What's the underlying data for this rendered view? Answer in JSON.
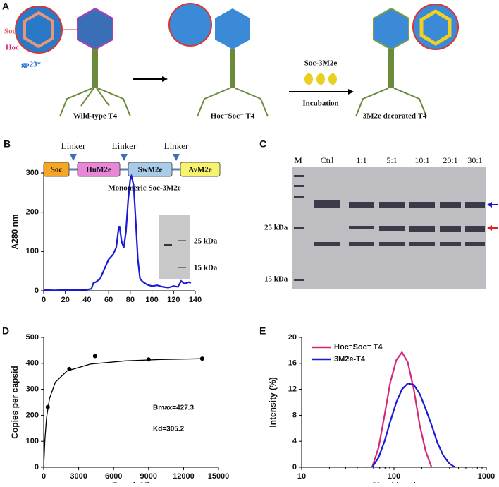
{
  "panel_labels": [
    "A",
    "B",
    "C",
    "D",
    "E"
  ],
  "panel_a": {
    "soc": "Soc",
    "hoc": "Hoc",
    "gp23": "gp23*",
    "wild_type": "Wild-type T4",
    "hoc_soc": "Hoc⁻Soc⁻ T4",
    "reagent": "Soc-3M2e",
    "incubation": "Incubation",
    "decorated": "3M2e decorated T4"
  },
  "panel_b_construct": {
    "linkers": [
      "Linker",
      "Linker",
      "Linker"
    ],
    "domains": [
      "Soc",
      "HuM2e",
      "SwM2e",
      "AvM2e"
    ]
  },
  "panel_c": {
    "lanes": [
      "M",
      "Ctrl",
      "1:1",
      "5:1",
      "10:1",
      "20:1",
      "30:1"
    ],
    "markers": [
      "25 kDa",
      "15 kDa"
    ]
  },
  "chart_data": [
    {
      "type": "line",
      "y_label": "A280 nm",
      "annotation": "Monomeric Soc-3M2e",
      "inset_labels": [
        "25 kDa",
        "15 kDa"
      ],
      "color": "#1a1ad6",
      "x": [
        0,
        10,
        20,
        30,
        40,
        44,
        46,
        48,
        52,
        56,
        60,
        64,
        67,
        69,
        70,
        72,
        74,
        76,
        78,
        80,
        81,
        83,
        85,
        87,
        89,
        92,
        96,
        100,
        105,
        110,
        115,
        120,
        124,
        127,
        130,
        134,
        136
      ],
      "values": [
        2,
        1,
        2,
        2,
        3,
        5,
        20,
        22,
        30,
        55,
        80,
        92,
        110,
        155,
        165,
        125,
        110,
        150,
        230,
        285,
        292,
        270,
        180,
        80,
        30,
        22,
        15,
        12,
        14,
        10,
        8,
        12,
        10,
        25,
        18,
        22,
        20
      ],
      "xlim": [
        0,
        140
      ],
      "xticks": [
        0,
        20,
        40,
        60,
        80,
        100,
        120,
        140
      ],
      "ylim": [
        0,
        300
      ],
      "yticks": [
        0,
        100,
        200,
        300
      ]
    },
    {
      "type": "scatter",
      "x_label": "Free (nM)",
      "y_label": "Copies per capsid",
      "annotations": [
        "Bmax=427.3",
        "Kd=305.2"
      ],
      "color": "#000000",
      "x": [
        350,
        2200,
        4400,
        9000,
        13600
      ],
      "values": [
        232,
        378,
        428,
        415,
        418
      ],
      "fit": {
        "x": [
          0,
          100,
          250,
          500,
          1000,
          2000,
          4000,
          7000,
          10000,
          13600
        ],
        "values": [
          0,
          105.5,
          192.4,
          265.3,
          327.4,
          370.7,
          397.0,
          409.4,
          414.6,
          417.9
        ]
      },
      "xlim": [
        0,
        15000
      ],
      "xticks": [
        0,
        3000,
        6000,
        9000,
        12000,
        15000
      ],
      "ylim": [
        0,
        500
      ],
      "yticks": [
        0,
        100,
        200,
        300,
        400,
        500
      ]
    },
    {
      "type": "line",
      "x_label": "Size (d.nm)",
      "y_label": "Intensity (%)",
      "xscale": "log",
      "series": [
        {
          "name": "Hoc⁻Soc⁻ T4",
          "color": "#d6287a",
          "x": [
            58,
            68,
            79,
            91,
            106,
            122,
            141,
            164,
            190,
            220,
            255
          ],
          "values": [
            0,
            3,
            8,
            13,
            16.5,
            17.7,
            16.2,
            12,
            6.5,
            2.5,
            0
          ]
        },
        {
          "name": "3M2e-T4",
          "color": "#1a1ad6",
          "x": [
            58,
            68,
            79,
            91,
            106,
            122,
            141,
            164,
            190,
            220,
            255,
            295,
            342,
            396,
            459
          ],
          "values": [
            0,
            1.5,
            4,
            7,
            10,
            12,
            12.9,
            12.7,
            11.3,
            9,
            6.5,
            3.8,
            1.8,
            0.6,
            0
          ]
        }
      ],
      "xlim": [
        10,
        1000
      ],
      "xticks": [
        10,
        100,
        1000
      ],
      "ylim": [
        0,
        20
      ],
      "yticks": [
        0,
        4,
        8,
        12,
        16,
        20
      ]
    }
  ]
}
